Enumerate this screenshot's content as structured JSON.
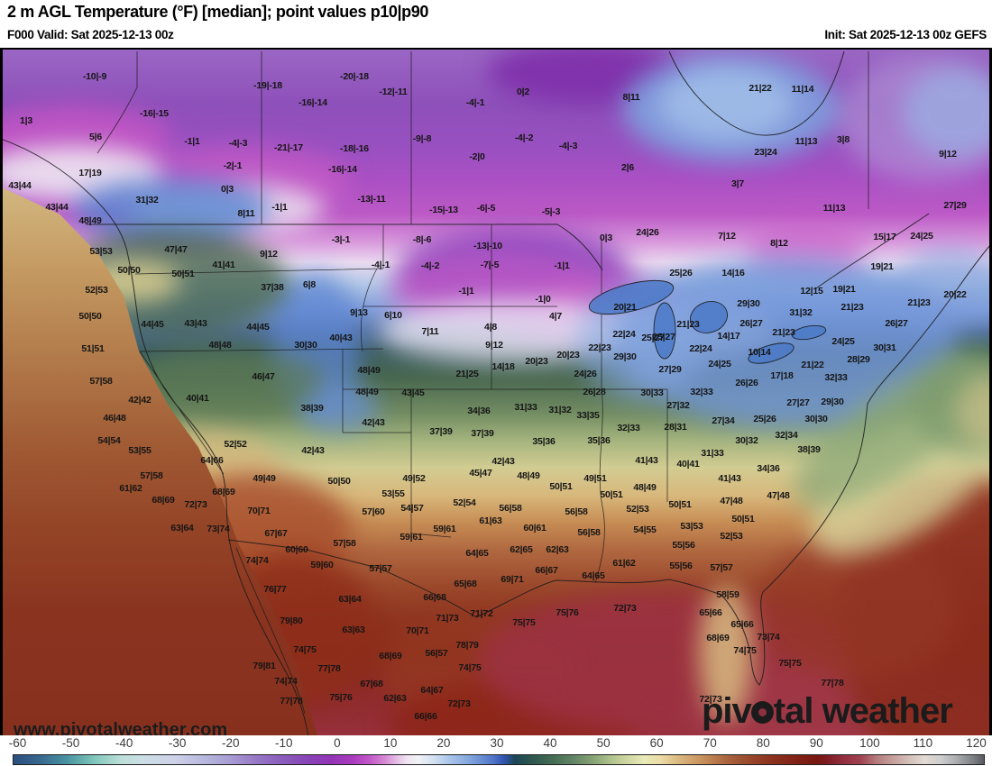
{
  "header": {
    "title": "2 m AGL Temperature (°F) [median]; point values p10|p90",
    "valid": "F000 Valid: Sat 2025-12-13 00z",
    "init": "Init: Sat 2025-12-13 00z GEFS"
  },
  "watermark": "www.pivotalweather.com",
  "logo": {
    "part1": "piv",
    "part2": "tal weather"
  },
  "colorbar": {
    "unit": "°F",
    "min": -60,
    "max": 120,
    "ticks": [
      -60,
      -50,
      -40,
      -30,
      -20,
      -10,
      0,
      10,
      20,
      30,
      40,
      50,
      60,
      70,
      80,
      90,
      100,
      110,
      120
    ],
    "palette": [
      [
        -60,
        "#2a4e80"
      ],
      [
        -55,
        "#38688e"
      ],
      [
        -50,
        "#4a94a2"
      ],
      [
        -45,
        "#80c6bc"
      ],
      [
        -40,
        "#bce0d8"
      ],
      [
        -36,
        "#ccdee6"
      ],
      [
        -30,
        "#cdd2e8"
      ],
      [
        -25,
        "#b8bade"
      ],
      [
        -20,
        "#a89ed4"
      ],
      [
        -15,
        "#9878c6"
      ],
      [
        -10,
        "#8a5cbc"
      ],
      [
        -5,
        "#8842b6"
      ],
      [
        -1,
        "#9434b8"
      ],
      [
        3,
        "#aa3cbe"
      ],
      [
        6,
        "#c258c8"
      ],
      [
        9,
        "#d88ad6"
      ],
      [
        11,
        "#e4bce6"
      ],
      [
        13,
        "#f0e4f2"
      ],
      [
        15,
        "#f2f2f6"
      ],
      [
        18,
        "#d2e0f2"
      ],
      [
        21,
        "#a8c4ea"
      ],
      [
        25,
        "#7ea2dc"
      ],
      [
        29,
        "#4f74c8"
      ],
      [
        31,
        "#3054b0"
      ],
      [
        33,
        "#1c4656"
      ],
      [
        36,
        "#2c564e"
      ],
      [
        40,
        "#446c54"
      ],
      [
        44,
        "#648666"
      ],
      [
        48,
        "#8ca878"
      ],
      [
        51,
        "#b2c48e"
      ],
      [
        54,
        "#d0d8a2"
      ],
      [
        57,
        "#e8eab8"
      ],
      [
        60,
        "#ecdca6"
      ],
      [
        63,
        "#dcbc84"
      ],
      [
        66,
        "#d0a06a"
      ],
      [
        69,
        "#c08454"
      ],
      [
        72,
        "#ac6840"
      ],
      [
        75,
        "#9e5232"
      ],
      [
        78,
        "#944026"
      ],
      [
        81,
        "#8c301e"
      ],
      [
        85,
        "#822216"
      ],
      [
        89,
        "#781610"
      ],
      [
        91,
        "#801c22"
      ],
      [
        94,
        "#923040"
      ],
      [
        97,
        "#a04050"
      ],
      [
        100,
        "#b47a7a"
      ],
      [
        103,
        "#c49e9a"
      ],
      [
        106,
        "#d4beb8"
      ],
      [
        109,
        "#e2dad4"
      ],
      [
        112,
        "#cecece"
      ],
      [
        115,
        "#aaacae"
      ],
      [
        118,
        "#7c8084"
      ],
      [
        120,
        "#585a5e"
      ]
    ]
  },
  "map": {
    "kind": "filled-contour temperature analysis",
    "model": "GEFS",
    "region": "CONUS, southern Canada, northern Mexico",
    "point_values": [
      [
        105,
        83,
        "-10|-9"
      ],
      [
        297,
        93,
        "-19|-18"
      ],
      [
        347,
        112,
        "-16|-14"
      ],
      [
        29,
        132,
        "1|3"
      ],
      [
        171,
        124,
        "-16|-15"
      ],
      [
        106,
        150,
        "5|6"
      ],
      [
        213,
        155,
        "-1|1"
      ],
      [
        264,
        157,
        "-4|-3"
      ],
      [
        320,
        162,
        "-21|-17"
      ],
      [
        258,
        182,
        "-2|-1"
      ],
      [
        100,
        190,
        "17|19"
      ],
      [
        22,
        204,
        "43|44"
      ],
      [
        252,
        208,
        "0|3"
      ],
      [
        163,
        220,
        "31|32"
      ],
      [
        63,
        228,
        "43|44"
      ],
      [
        310,
        228,
        "-1|1"
      ],
      [
        273,
        235,
        "8|11"
      ],
      [
        100,
        243,
        "48|49"
      ],
      [
        393,
        83,
        "-20|-18"
      ],
      [
        436,
        100,
        "-12|-11"
      ],
      [
        580,
        100,
        "0|2"
      ],
      [
        527,
        112,
        "-4|-1"
      ],
      [
        700,
        106,
        "8|11"
      ],
      [
        468,
        152,
        "-9|-8"
      ],
      [
        581,
        151,
        "-4|-2"
      ],
      [
        630,
        160,
        "-4|-3"
      ],
      [
        393,
        163,
        "-18|-16"
      ],
      [
        380,
        186,
        "-16|-14"
      ],
      [
        529,
        172,
        "-2|0"
      ],
      [
        696,
        184,
        "2|6"
      ],
      [
        412,
        219,
        "-13|-11"
      ],
      [
        492,
        231,
        "-15|-13"
      ],
      [
        539,
        229,
        "-6|-5"
      ],
      [
        611,
        233,
        "-5|-3"
      ],
      [
        843,
        96,
        "21|22"
      ],
      [
        890,
        97,
        "11|14"
      ],
      [
        894,
        155,
        "11|13"
      ],
      [
        935,
        153,
        "3|8"
      ],
      [
        849,
        167,
        "23|24"
      ],
      [
        1051,
        169,
        "9|12"
      ],
      [
        818,
        202,
        "3|7"
      ],
      [
        925,
        229,
        "11|13"
      ],
      [
        1059,
        226,
        "27|29"
      ],
      [
        981,
        261,
        "15|17"
      ],
      [
        1022,
        260,
        "24|25"
      ],
      [
        112,
        277,
        "53|53"
      ],
      [
        195,
        275,
        "47|47"
      ],
      [
        298,
        280,
        "9|12"
      ],
      [
        248,
        292,
        "41|41"
      ],
      [
        143,
        298,
        "50|50"
      ],
      [
        203,
        302,
        "50|51"
      ],
      [
        107,
        320,
        "52|53"
      ],
      [
        302,
        317,
        "37|38"
      ],
      [
        343,
        314,
        "6|8"
      ],
      [
        100,
        349,
        "50|50"
      ],
      [
        169,
        358,
        "44|45"
      ],
      [
        217,
        357,
        "43|43"
      ],
      [
        286,
        361,
        "44|45"
      ],
      [
        244,
        381,
        "48|48"
      ],
      [
        339,
        381,
        "30|30"
      ],
      [
        103,
        385,
        "51|51"
      ],
      [
        112,
        421,
        "57|58"
      ],
      [
        292,
        416,
        "46|47"
      ],
      [
        378,
        264,
        "-3|-1"
      ],
      [
        468,
        264,
        "-8|-6"
      ],
      [
        541,
        271,
        "-13|-10"
      ],
      [
        672,
        262,
        "0|3"
      ],
      [
        718,
        256,
        "24|26"
      ],
      [
        422,
        292,
        "-4|-1"
      ],
      [
        477,
        293,
        "-4|-2"
      ],
      [
        543,
        292,
        "-7|-5"
      ],
      [
        623,
        293,
        "-1|1"
      ],
      [
        517,
        321,
        "-1|1"
      ],
      [
        602,
        330,
        "-1|0"
      ],
      [
        398,
        345,
        "9|13"
      ],
      [
        436,
        348,
        "6|10"
      ],
      [
        693,
        339,
        "20|21"
      ],
      [
        616,
        349,
        "4|7"
      ],
      [
        477,
        366,
        "7|11"
      ],
      [
        544,
        361,
        "4|8"
      ],
      [
        378,
        373,
        "40|43"
      ],
      [
        692,
        369,
        "22|24"
      ],
      [
        724,
        373,
        "25|27"
      ],
      [
        548,
        381,
        "9|12"
      ],
      [
        665,
        384,
        "22|23"
      ],
      [
        630,
        392,
        "20|23"
      ],
      [
        693,
        394,
        "29|30"
      ],
      [
        595,
        399,
        "20|23"
      ],
      [
        409,
        409,
        "48|49"
      ],
      [
        558,
        405,
        "14|18"
      ],
      [
        518,
        413,
        "21|25"
      ],
      [
        649,
        413,
        "24|26"
      ],
      [
        407,
        433,
        "48|49"
      ],
      [
        458,
        434,
        "43|45"
      ],
      [
        659,
        433,
        "26|28"
      ],
      [
        723,
        434,
        "30|33"
      ],
      [
        806,
        260,
        "7|12"
      ],
      [
        864,
        268,
        "8|12"
      ],
      [
        755,
        301,
        "25|26"
      ],
      [
        813,
        301,
        "14|16"
      ],
      [
        978,
        294,
        "19|21"
      ],
      [
        900,
        321,
        "12|15"
      ],
      [
        936,
        319,
        "19|21"
      ],
      [
        1059,
        325,
        "20|22"
      ],
      [
        830,
        335,
        "29|30"
      ],
      [
        945,
        339,
        "21|23"
      ],
      [
        1019,
        334,
        "21|23"
      ],
      [
        888,
        345,
        "31|32"
      ],
      [
        833,
        357,
        "26|27"
      ],
      [
        994,
        357,
        "26|27"
      ],
      [
        763,
        358,
        "21|23"
      ],
      [
        869,
        367,
        "21|23"
      ],
      [
        808,
        371,
        "14|17"
      ],
      [
        736,
        372,
        "25|27"
      ],
      [
        935,
        377,
        "24|25"
      ],
      [
        777,
        385,
        "22|24"
      ],
      [
        981,
        384,
        "30|31"
      ],
      [
        842,
        389,
        "10|14"
      ],
      [
        798,
        402,
        "24|25"
      ],
      [
        952,
        397,
        "28|29"
      ],
      [
        743,
        408,
        "27|29"
      ],
      [
        901,
        403,
        "21|22"
      ],
      [
        867,
        415,
        "17|18"
      ],
      [
        927,
        417,
        "32|33"
      ],
      [
        828,
        423,
        "26|26"
      ],
      [
        778,
        433,
        "32|33"
      ],
      [
        155,
        442,
        "42|42"
      ],
      [
        219,
        440,
        "40|41"
      ],
      [
        346,
        451,
        "38|39"
      ],
      [
        127,
        462,
        "46|48"
      ],
      [
        121,
        487,
        "54|54"
      ],
      [
        261,
        491,
        "52|52"
      ],
      [
        155,
        498,
        "53|55"
      ],
      [
        347,
        498,
        "42|43"
      ],
      [
        235,
        509,
        "64|66"
      ],
      [
        168,
        526,
        "57|58"
      ],
      [
        293,
        529,
        "49|49"
      ],
      [
        145,
        540,
        "61|62"
      ],
      [
        248,
        544,
        "68|69"
      ],
      [
        181,
        553,
        "68|69"
      ],
      [
        217,
        558,
        "72|73"
      ],
      [
        287,
        565,
        "70|71"
      ],
      [
        202,
        584,
        "63|64"
      ],
      [
        242,
        585,
        "73|74"
      ],
      [
        306,
        590,
        "67|67"
      ],
      [
        329,
        608,
        "60|60"
      ],
      [
        285,
        620,
        "74|74"
      ],
      [
        357,
        625,
        "59|60"
      ],
      [
        531,
        454,
        "34|36"
      ],
      [
        583,
        450,
        "31|33"
      ],
      [
        621,
        453,
        "31|32"
      ],
      [
        652,
        459,
        "33|35"
      ],
      [
        414,
        467,
        "42|43"
      ],
      [
        697,
        473,
        "32|33"
      ],
      [
        489,
        477,
        "37|39"
      ],
      [
        535,
        479,
        "37|39"
      ],
      [
        603,
        488,
        "35|36"
      ],
      [
        664,
        487,
        "35|36"
      ],
      [
        558,
        510,
        "42|43"
      ],
      [
        717,
        509,
        "41|43"
      ],
      [
        533,
        523,
        "45|47"
      ],
      [
        586,
        526,
        "48|49"
      ],
      [
        660,
        529,
        "49|51"
      ],
      [
        459,
        529,
        "49|52"
      ],
      [
        622,
        538,
        "50|51"
      ],
      [
        715,
        539,
        "48|49"
      ],
      [
        376,
        532,
        "50|50"
      ],
      [
        436,
        546,
        "53|55"
      ],
      [
        678,
        547,
        "50|51"
      ],
      [
        515,
        556,
        "52|54"
      ],
      [
        566,
        562,
        "56|58"
      ],
      [
        457,
        562,
        "54|57"
      ],
      [
        639,
        566,
        "56|58"
      ],
      [
        707,
        563,
        "52|53"
      ],
      [
        414,
        566,
        "57|60"
      ],
      [
        544,
        576,
        "61|63"
      ],
      [
        593,
        584,
        "60|61"
      ],
      [
        715,
        586,
        "54|55"
      ],
      [
        493,
        585,
        "59|61"
      ],
      [
        653,
        589,
        "56|58"
      ],
      [
        456,
        594,
        "59|61"
      ],
      [
        382,
        601,
        "57|58"
      ],
      [
        529,
        612,
        "64|65"
      ],
      [
        578,
        608,
        "62|65"
      ],
      [
        618,
        608,
        "62|63"
      ],
      [
        692,
        623,
        "61|62"
      ],
      [
        422,
        629,
        "57|57"
      ],
      [
        606,
        631,
        "66|67"
      ],
      [
        658,
        637,
        "64|65"
      ],
      [
        752,
        448,
        "27|32"
      ],
      [
        802,
        465,
        "27|34"
      ],
      [
        848,
        463,
        "25|26"
      ],
      [
        885,
        445,
        "27|27"
      ],
      [
        923,
        444,
        "29|30"
      ],
      [
        749,
        472,
        "28|31"
      ],
      [
        905,
        463,
        "30|30"
      ],
      [
        872,
        481,
        "32|34"
      ],
      [
        828,
        487,
        "30|32"
      ],
      [
        897,
        497,
        "38|39"
      ],
      [
        790,
        501,
        "31|33"
      ],
      [
        763,
        513,
        "40|41"
      ],
      [
        852,
        518,
        "34|36"
      ],
      [
        809,
        529,
        "41|43"
      ],
      [
        863,
        548,
        "47|48"
      ],
      [
        754,
        558,
        "50|51"
      ],
      [
        811,
        554,
        "47|48"
      ],
      [
        824,
        574,
        "50|51"
      ],
      [
        767,
        582,
        "53|53"
      ],
      [
        811,
        593,
        "52|53"
      ],
      [
        758,
        603,
        "55|56"
      ],
      [
        755,
        626,
        "55|56"
      ],
      [
        800,
        628,
        "57|57"
      ],
      [
        305,
        652,
        "76|77"
      ],
      [
        323,
        687,
        "79|80"
      ],
      [
        338,
        719,
        "74|75"
      ],
      [
        293,
        737,
        "79|81"
      ],
      [
        365,
        740,
        "77|78"
      ],
      [
        317,
        754,
        "74|74"
      ],
      [
        323,
        776,
        "77|78"
      ],
      [
        568,
        641,
        "69|71"
      ],
      [
        516,
        646,
        "65|68"
      ],
      [
        388,
        663,
        "63|64"
      ],
      [
        482,
        661,
        "66|68"
      ],
      [
        693,
        673,
        "72|73"
      ],
      [
        629,
        678,
        "75|76"
      ],
      [
        534,
        679,
        "71|72"
      ],
      [
        496,
        684,
        "71|73"
      ],
      [
        581,
        689,
        "75|75"
      ],
      [
        392,
        697,
        "63|63"
      ],
      [
        463,
        698,
        "70|71"
      ],
      [
        518,
        714,
        "78|79"
      ],
      [
        433,
        726,
        "68|69"
      ],
      [
        484,
        723,
        "56|57"
      ],
      [
        521,
        739,
        "74|75"
      ],
      [
        412,
        757,
        "67|68"
      ],
      [
        378,
        772,
        "75|76"
      ],
      [
        479,
        764,
        "64|67"
      ],
      [
        438,
        773,
        "62|63"
      ],
      [
        509,
        779,
        "72|73"
      ],
      [
        472,
        793,
        "66|66"
      ],
      [
        807,
        658,
        "58|59"
      ],
      [
        788,
        678,
        "65|66"
      ],
      [
        823,
        691,
        "65|66"
      ],
      [
        796,
        706,
        "68|69"
      ],
      [
        852,
        705,
        "73|74"
      ],
      [
        826,
        720,
        "74|75"
      ],
      [
        876,
        734,
        "75|75"
      ],
      [
        923,
        756,
        "77|78"
      ],
      [
        788,
        774,
        "72|73"
      ]
    ]
  }
}
